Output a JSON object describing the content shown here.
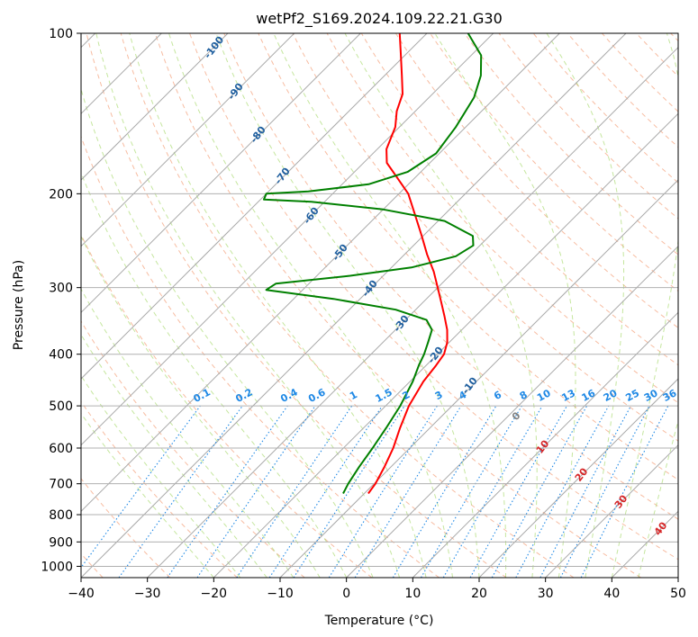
{
  "chart_data": {
    "type": "line",
    "subtype": "skew-t log-p diagram",
    "title": "wetPf2_S169.2024.109.22.21.G30",
    "xlabel": "Temperature (°C)",
    "ylabel": "Pressure (hPa)",
    "xlim": [
      -40,
      50
    ],
    "ylim": [
      1050,
      100
    ],
    "y_scale": "log",
    "x_ticks": [
      "−40",
      "−30",
      "−20",
      "−10",
      "0",
      "10",
      "20",
      "30",
      "40",
      "50"
    ],
    "x_tick_values": [
      -40,
      -30,
      -20,
      -10,
      0,
      10,
      20,
      30,
      40,
      50
    ],
    "y_ticks": [
      "100",
      "200",
      "300",
      "400",
      "500",
      "600",
      "700",
      "800",
      "900",
      "1000"
    ],
    "y_tick_values": [
      100,
      200,
      300,
      400,
      500,
      600,
      700,
      800,
      900,
      1000
    ],
    "grid": true,
    "series": [
      {
        "name": "",
        "color": "#ff0000",
        "points": [
          {
            "p": 730,
            "t": -9.4
          },
          {
            "p": 700,
            "t": -9.8
          },
          {
            "p": 650,
            "t": -11.0
          },
          {
            "p": 600,
            "t": -12.5
          },
          {
            "p": 550,
            "t": -14.5
          },
          {
            "p": 500,
            "t": -16.5
          },
          {
            "p": 450,
            "t": -18.0
          },
          {
            "p": 420,
            "t": -18.5
          },
          {
            "p": 400,
            "t": -19.0
          },
          {
            "p": 380,
            "t": -20.3
          },
          {
            "p": 360,
            "t": -22.2
          },
          {
            "p": 340,
            "t": -24.6
          },
          {
            "p": 320,
            "t": -27.2
          },
          {
            "p": 300,
            "t": -30.0
          },
          {
            "p": 280,
            "t": -33.0
          },
          {
            "p": 260,
            "t": -36.6
          },
          {
            "p": 240,
            "t": -40.2
          },
          {
            "p": 220,
            "t": -44.2
          },
          {
            "p": 200,
            "t": -48.6
          },
          {
            "p": 185,
            "t": -53.2
          },
          {
            "p": 175,
            "t": -56.5
          },
          {
            "p": 165,
            "t": -58.6
          },
          {
            "p": 150,
            "t": -60.6
          },
          {
            "p": 140,
            "t": -62.8
          },
          {
            "p": 130,
            "t": -64.5
          },
          {
            "p": 120,
            "t": -67.4
          },
          {
            "p": 110,
            "t": -70.6
          },
          {
            "p": 100,
            "t": -74.1
          }
        ]
      },
      {
        "name": "",
        "color": "#008000",
        "points": [
          {
            "p": 730,
            "t": -13.2
          },
          {
            "p": 700,
            "t": -13.9
          },
          {
            "p": 650,
            "t": -14.8
          },
          {
            "p": 600,
            "t": -15.6
          },
          {
            "p": 550,
            "t": -16.6
          },
          {
            "p": 500,
            "t": -17.8
          },
          {
            "p": 450,
            "t": -19.6
          },
          {
            "p": 420,
            "t": -21.1
          },
          {
            "p": 400,
            "t": -22.0
          },
          {
            "p": 380,
            "t": -23.2
          },
          {
            "p": 360,
            "t": -24.5
          },
          {
            "p": 345,
            "t": -26.8
          },
          {
            "p": 330,
            "t": -33.0
          },
          {
            "p": 315,
            "t": -44.0
          },
          {
            "p": 303,
            "t": -55.5
          },
          {
            "p": 295,
            "t": -55.0
          },
          {
            "p": 285,
            "t": -45.0
          },
          {
            "p": 275,
            "t": -37.0
          },
          {
            "p": 262,
            "t": -32.0
          },
          {
            "p": 250,
            "t": -31.0
          },
          {
            "p": 240,
            "t": -32.5
          },
          {
            "p": 225,
            "t": -39.0
          },
          {
            "p": 214,
            "t": -50.0
          },
          {
            "p": 207,
            "t": -62.0
          },
          {
            "p": 205,
            "t": -69.5
          },
          {
            "p": 200,
            "t": -70.0
          },
          {
            "p": 198,
            "t": -64.0
          },
          {
            "p": 192,
            "t": -56.0
          },
          {
            "p": 182,
            "t": -52.0
          },
          {
            "p": 168,
            "t": -50.5
          },
          {
            "p": 150,
            "t": -51.5
          },
          {
            "p": 132,
            "t": -53.2
          },
          {
            "p": 120,
            "t": -55.5
          },
          {
            "p": 110,
            "t": -58.5
          },
          {
            "p": 100,
            "t": -63.8
          }
        ]
      }
    ],
    "isotherm_label": {
      "value": "0",
      "p": 500
    },
    "dry_adiabat_labels": [
      "-100",
      "-90",
      "-80",
      "-70",
      "-60",
      "-50",
      "-40",
      "-30",
      "-20",
      "-10"
    ],
    "moist_adiabat_labels": [
      "10",
      "20",
      "30",
      "40"
    ],
    "mixing_ratio_labels": [
      "0.1",
      "0.2",
      "0.4",
      "0.6",
      "1",
      "1.5",
      "2",
      "3",
      "4",
      "6",
      "8",
      "10",
      "13",
      "16",
      "20",
      "25",
      "30",
      "36"
    ],
    "mixing_ratio_values": [
      0.1,
      0.2,
      0.4,
      0.6,
      1,
      1.5,
      2,
      3,
      4,
      6,
      8,
      10,
      13,
      16,
      20,
      25,
      30,
      36
    ],
    "colors": {
      "isotherm": "#a9a9a9",
      "dry_adiabat": "#f4a582",
      "moist_adiabat": "#a6d96a",
      "mixing_ratio": "#1e88e5",
      "dry_label": "#1f5f9f",
      "moist_label": "#d62728"
    }
  }
}
